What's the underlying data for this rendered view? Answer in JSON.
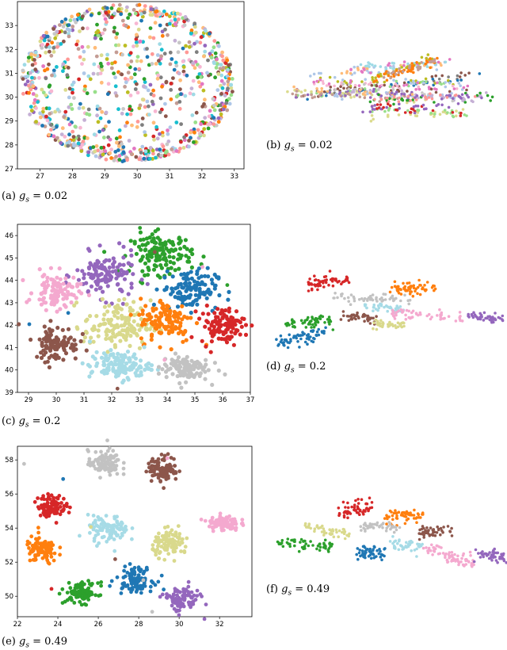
{
  "palette": [
    "#1f77b4",
    "#ff7f0e",
    "#2ca02c",
    "#d62728",
    "#9467bd",
    "#8c564b",
    "#e377c2",
    "#c7c7c7",
    "#dbdb8d",
    "#9edae5",
    "#bcbd22",
    "#17becf",
    "#aec7e8",
    "#ffbb78",
    "#98df8a",
    "#f7b6d2",
    "#c5b0d5",
    "#c49c94",
    "#7f7f7f",
    "#ff9896"
  ],
  "captions": {
    "a": {
      "prefix": "(a)",
      "var": "g",
      "sub": "s",
      "eq": "= 0.02"
    },
    "b": {
      "prefix": "(b)",
      "var": "g",
      "sub": "s",
      "eq": "= 0.02"
    },
    "c": {
      "prefix": "(c)",
      "var": "g",
      "sub": "s",
      "eq": "= 0.2"
    },
    "d": {
      "prefix": "(d)",
      "var": "g",
      "sub": "s",
      "eq": "= 0.2"
    },
    "e": {
      "prefix": "(e)",
      "var": "g",
      "sub": "s",
      "eq": "= 0.49"
    },
    "f": {
      "prefix": "(f)",
      "var": "g",
      "sub": "s",
      "eq": "= 0.49"
    }
  },
  "chart_data": [
    {
      "id": "a",
      "type": "scatter",
      "title": "",
      "xlabel": "",
      "ylabel": "",
      "xlim": [
        26.3,
        33.3
      ],
      "ylim": [
        27.0,
        34.0
      ],
      "xticks": [
        "27",
        "28",
        "29",
        "30",
        "31",
        "32",
        "33"
      ],
      "yticks": [
        "27",
        "28",
        "29",
        "30",
        "31",
        "32",
        "33"
      ],
      "grid": false,
      "series_description": "many small clusters of mixed colours spread uniformly over an ellipse",
      "ellipse": {
        "cx": 29.7,
        "cy": 30.6,
        "rx": 3.3,
        "ry": 3.3
      },
      "n_points": 950,
      "n_colours": 20
    },
    {
      "id": "c",
      "type": "scatter",
      "title": "",
      "xlabel": "",
      "ylabel": "",
      "xlim": [
        28.6,
        37.0
      ],
      "ylim": [
        39.0,
        46.5
      ],
      "xticks": [
        "29",
        "30",
        "31",
        "32",
        "33",
        "34",
        "35",
        "36",
        "37"
      ],
      "yticks": [
        "39",
        "40",
        "41",
        "42",
        "43",
        "44",
        "45",
        "46"
      ],
      "grid": false,
      "clusters": [
        {
          "colour": "green",
          "cx": 33.8,
          "cy": 45.2,
          "rx": 1.1,
          "ry": 0.9,
          "n": 150
        },
        {
          "colour": "purple",
          "cx": 31.8,
          "cy": 44.2,
          "rx": 1.1,
          "ry": 1.0,
          "n": 130
        },
        {
          "colour": "pink",
          "cx": 30.0,
          "cy": 43.5,
          "rx": 0.8,
          "ry": 0.8,
          "n": 100
        },
        {
          "colour": "blue",
          "cx": 34.8,
          "cy": 43.6,
          "rx": 1.0,
          "ry": 0.9,
          "n": 120
        },
        {
          "colour": "olive",
          "cx": 32.2,
          "cy": 42.0,
          "rx": 1.2,
          "ry": 1.1,
          "n": 140
        },
        {
          "colour": "orange",
          "cx": 34.0,
          "cy": 42.2,
          "rx": 1.0,
          "ry": 1.0,
          "n": 120
        },
        {
          "colour": "brown",
          "cx": 30.0,
          "cy": 41.2,
          "rx": 0.8,
          "ry": 0.8,
          "n": 100
        },
        {
          "colour": "red",
          "cx": 36.0,
          "cy": 42.0,
          "rx": 0.8,
          "ry": 0.8,
          "n": 110
        },
        {
          "colour": "light-blue",
          "cx": 32.3,
          "cy": 40.2,
          "rx": 1.1,
          "ry": 0.6,
          "n": 130
        },
        {
          "colour": "grey",
          "cx": 34.6,
          "cy": 40.1,
          "rx": 0.9,
          "ry": 0.6,
          "n": 110
        }
      ]
    },
    {
      "id": "e",
      "type": "scatter",
      "title": "",
      "xlabel": "",
      "ylabel": "",
      "xlim": [
        22.0,
        33.6
      ],
      "ylim": [
        48.8,
        58.8
      ],
      "xticks": [
        "22",
        "24",
        "26",
        "28",
        "30",
        "32"
      ],
      "yticks": [
        "50",
        "52",
        "54",
        "56",
        "58"
      ],
      "grid": false,
      "clusters": [
        {
          "colour": "grey",
          "cx": 26.3,
          "cy": 57.8,
          "rx": 0.8,
          "ry": 0.75,
          "n": 100
        },
        {
          "colour": "brown",
          "cx": 29.2,
          "cy": 57.5,
          "rx": 0.75,
          "ry": 0.75,
          "n": 100
        },
        {
          "colour": "red",
          "cx": 23.7,
          "cy": 55.3,
          "rx": 0.7,
          "ry": 0.65,
          "n": 100
        },
        {
          "colour": "pink",
          "cx": 32.2,
          "cy": 54.3,
          "rx": 0.75,
          "ry": 0.45,
          "n": 100
        },
        {
          "colour": "light-blue",
          "cx": 26.5,
          "cy": 53.9,
          "rx": 1.0,
          "ry": 0.8,
          "n": 100
        },
        {
          "colour": "olive",
          "cx": 29.6,
          "cy": 53.1,
          "rx": 0.9,
          "ry": 0.75,
          "n": 100
        },
        {
          "colour": "orange",
          "cx": 23.2,
          "cy": 52.7,
          "rx": 0.8,
          "ry": 0.8,
          "n": 100
        },
        {
          "colour": "blue",
          "cx": 27.8,
          "cy": 51.0,
          "rx": 0.9,
          "ry": 0.7,
          "n": 100
        },
        {
          "colour": "green",
          "cx": 25.2,
          "cy": 50.2,
          "rx": 0.8,
          "ry": 0.6,
          "n": 100
        },
        {
          "colour": "purple",
          "cx": 30.1,
          "cy": 49.8,
          "rx": 0.9,
          "ry": 0.75,
          "n": 100
        }
      ]
    }
  ]
}
